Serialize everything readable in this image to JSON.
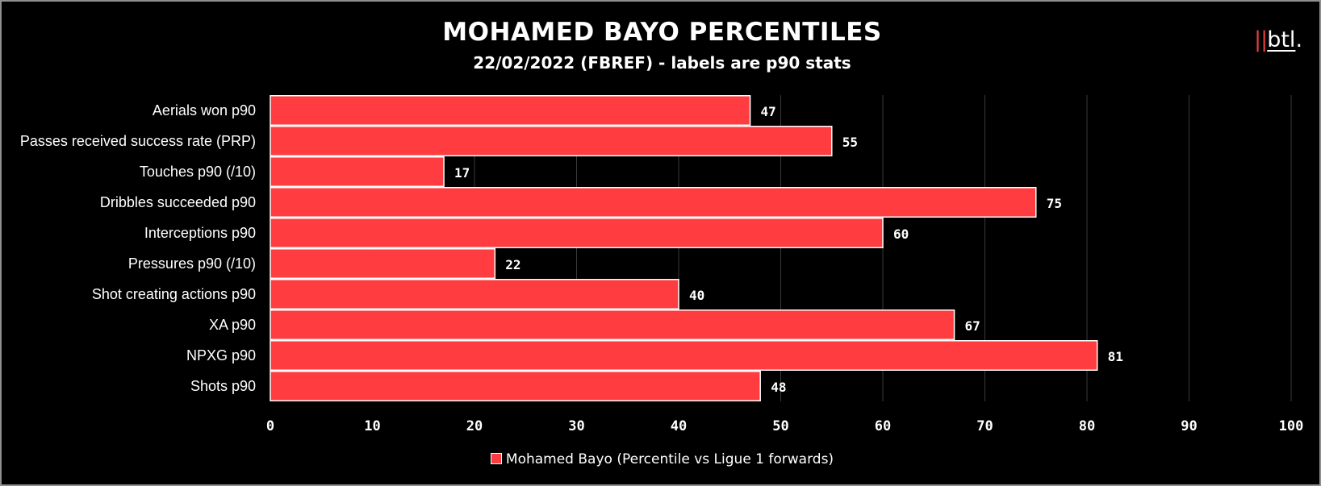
{
  "chart_data": {
    "type": "bar",
    "orientation": "horizontal",
    "title": "MOHAMED BAYO PERCENTILES",
    "subtitle": "22/02/2022 (FBREF) - labels are p90 stats",
    "categories": [
      "Aerials won p90",
      "Passes received success rate (PRP)",
      "Touches p90 (/10)",
      "Dribbles succeeded p90",
      "Interceptions p90",
      "Pressures p90 (/10)",
      "Shot creating actions p90",
      "XA p90",
      "NPXG p90",
      "Shots p90"
    ],
    "series": [
      {
        "name": "Mohamed Bayo (Percentile vs Ligue 1 forwards)",
        "values": [
          47,
          55,
          17,
          75,
          60,
          22,
          40,
          67,
          81,
          48
        ],
        "color": "#ff3c3f"
      }
    ],
    "data_labels": [
      "47",
      "55",
      "17",
      "75",
      "60",
      "22",
      "40",
      "67",
      "81",
      "48"
    ],
    "xlim": [
      0,
      100
    ],
    "xticks": [
      0,
      10,
      20,
      30,
      40,
      50,
      60,
      70,
      80,
      90,
      100
    ],
    "grid": "vertical",
    "legend": "bottom-center"
  },
  "logo": {
    "bars": "||",
    "text": "btl",
    "dot": "."
  },
  "colors": {
    "background": "#000000",
    "bar": "#ff3c3f",
    "bar_edge": "#ffffff",
    "grid": "#3a3a3a",
    "text": "#ffffff"
  }
}
